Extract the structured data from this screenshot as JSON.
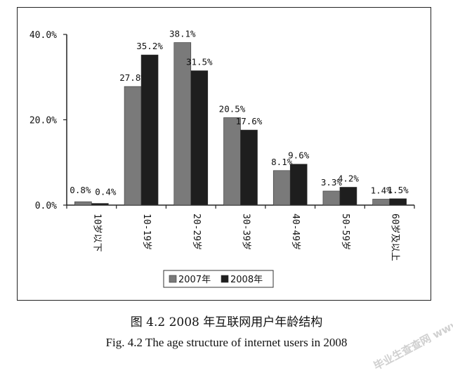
{
  "chart_data": {
    "type": "bar",
    "categories": [
      "10岁以下",
      "10-19岁",
      "20-29岁",
      "30-39岁",
      "40-49岁",
      "50-59岁",
      "60岁及以上"
    ],
    "series": [
      {
        "name": "2007年",
        "values": [
          0.8,
          27.8,
          38.1,
          20.5,
          8.1,
          3.3,
          1.4
        ],
        "labels": [
          "0.8%",
          "27.8%",
          "38.1%",
          "20.5%",
          "8.1%",
          "3.3%",
          "1.4%"
        ],
        "color": "#7a7a7a"
      },
      {
        "name": "2008年",
        "values": [
          0.4,
          35.2,
          31.5,
          17.6,
          9.6,
          4.2,
          1.5
        ],
        "labels": [
          "0.4%",
          "35.2%",
          "31.5%",
          "17.6%",
          "9.6%",
          "4.2%",
          "1.5%"
        ],
        "color": "#1e1e1e"
      }
    ],
    "yticks": [
      "0.0%",
      "20.0%",
      "40.0%"
    ],
    "ytick_values": [
      0,
      20,
      40
    ],
    "ylim": [
      0,
      40
    ],
    "grid": false,
    "legend": "bottom-center"
  },
  "captions": {
    "cn": "图 4.2 2008 年互联网用户年龄结构",
    "en": "Fig. 4.2 The age structure of internet users in 2008"
  },
  "watermark": "毕业生查查网 www.sbvv.com"
}
